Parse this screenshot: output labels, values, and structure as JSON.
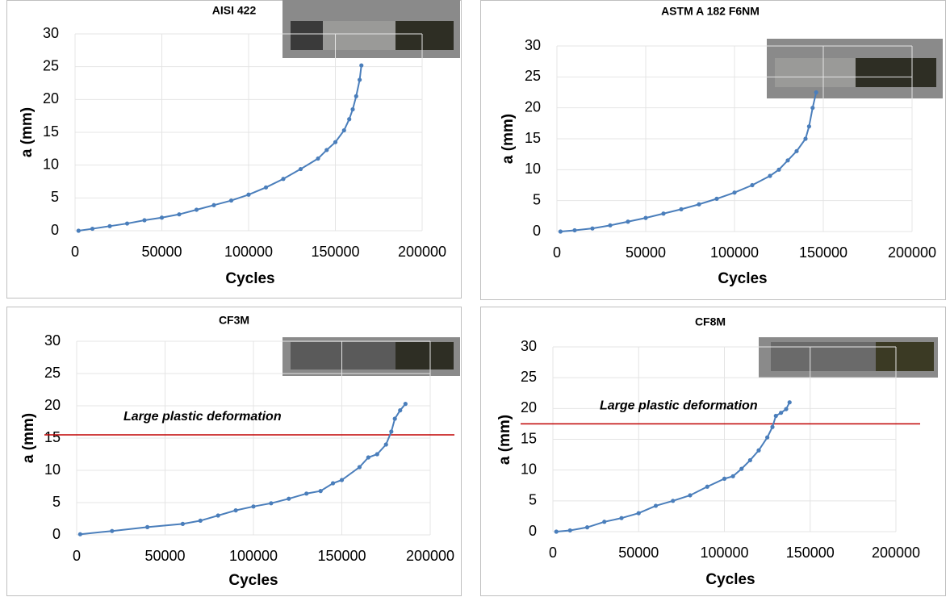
{
  "chart_data": [
    {
      "type": "line",
      "title": "AISI 422",
      "xlabel": "Cycles",
      "ylabel": "a (mm)",
      "color": "#4a7ebb",
      "x": [
        2000,
        10000,
        20000,
        30000,
        40000,
        50000,
        60000,
        70000,
        80000,
        90000,
        100000,
        110000,
        120000,
        130000,
        140000,
        145000,
        150000,
        155000,
        158000,
        160000,
        162000,
        164000,
        165000
      ],
      "values": [
        0,
        0.3,
        0.7,
        1.1,
        1.6,
        2.0,
        2.5,
        3.2,
        3.9,
        4.6,
        5.5,
        6.6,
        7.9,
        9.4,
        11.0,
        12.3,
        13.5,
        15.3,
        17.0,
        18.5,
        20.5,
        23.0,
        25.2
      ],
      "xlim": [
        0,
        200000
      ],
      "xticks": [
        0,
        50000,
        100000,
        150000,
        200000
      ],
      "ylim": [
        0,
        30
      ],
      "yticks": [
        0,
        5,
        10,
        15,
        20,
        25,
        30
      ],
      "grid": true
    },
    {
      "type": "line",
      "title": "ASTM A 182 F6NM",
      "xlabel": "Cycles",
      "ylabel": "a (mm)",
      "color": "#4a7ebb",
      "x": [
        2000,
        10000,
        20000,
        30000,
        40000,
        50000,
        60000,
        70000,
        80000,
        90000,
        100000,
        110000,
        120000,
        125000,
        130000,
        135000,
        140000,
        142000,
        144000,
        146000
      ],
      "values": [
        0,
        0.2,
        0.5,
        1.0,
        1.6,
        2.2,
        2.9,
        3.6,
        4.4,
        5.3,
        6.3,
        7.5,
        9.0,
        10.0,
        11.5,
        13.0,
        15.0,
        17.0,
        20.0,
        22.5
      ],
      "xlim": [
        0,
        200000
      ],
      "xticks": [
        0,
        50000,
        100000,
        150000,
        200000
      ],
      "ylim": [
        0,
        30
      ],
      "yticks": [
        0,
        5,
        10,
        15,
        20,
        25,
        30
      ],
      "grid": true
    },
    {
      "type": "line",
      "title": "CF3M",
      "xlabel": "Cycles",
      "ylabel": "a (mm)",
      "color": "#4a7ebb",
      "x": [
        2000,
        20000,
        40000,
        60000,
        70000,
        80000,
        90000,
        100000,
        110000,
        120000,
        130000,
        138000,
        145000,
        150000,
        160000,
        165000,
        170000,
        175000,
        178000,
        180000,
        183000,
        186000
      ],
      "values": [
        0.1,
        0.6,
        1.2,
        1.7,
        2.2,
        3.0,
        3.8,
        4.4,
        4.9,
        5.6,
        6.4,
        6.8,
        8.0,
        8.5,
        10.5,
        12.0,
        12.5,
        14.0,
        16.0,
        18.0,
        19.3,
        20.3
      ],
      "xlim": [
        0,
        200000
      ],
      "xticks": [
        0,
        50000,
        100000,
        150000,
        200000
      ],
      "ylim": [
        0,
        30
      ],
      "yticks": [
        0,
        5,
        10,
        15,
        20,
        25,
        30
      ],
      "grid": true,
      "annotation": {
        "text": "Large plastic deformation",
        "y": 15.5,
        "color": "#c00000"
      }
    },
    {
      "type": "line",
      "title": "CF8M",
      "xlabel": "Cycles",
      "ylabel": "a (mm)",
      "color": "#4a7ebb",
      "x": [
        2000,
        10000,
        20000,
        30000,
        40000,
        50000,
        60000,
        70000,
        80000,
        90000,
        100000,
        105000,
        110000,
        115000,
        120000,
        125000,
        128000,
        130000,
        133000,
        136000,
        138000
      ],
      "values": [
        0,
        0.2,
        0.7,
        1.6,
        2.2,
        3.0,
        4.2,
        5.0,
        5.9,
        7.3,
        8.6,
        9.0,
        10.2,
        11.6,
        13.2,
        15.3,
        17.0,
        18.8,
        19.3,
        19.9,
        21.0
      ],
      "xlim": [
        0,
        200000
      ],
      "xticks": [
        0,
        50000,
        100000,
        150000,
        200000
      ],
      "ylim": [
        0,
        30
      ],
      "yticks": [
        0,
        5,
        10,
        15,
        20,
        25,
        30
      ],
      "grid": true,
      "annotation": {
        "text": "Large plastic deformation",
        "y": 17.5,
        "color": "#c00000"
      }
    }
  ]
}
